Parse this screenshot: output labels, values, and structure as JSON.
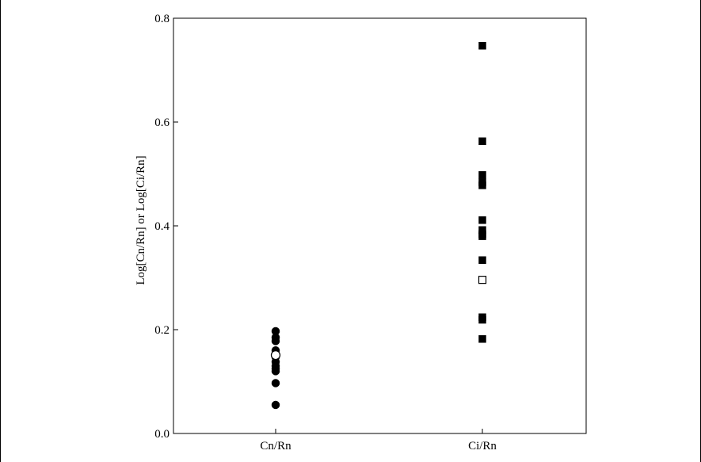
{
  "chart_data": {
    "type": "scatter",
    "title": "",
    "xlabel": "",
    "ylabel": "Log[Cn/Rn] or Log[Ci/Rn]",
    "categories": [
      "Cn/Rn",
      "Ci/Rn"
    ],
    "ylim": [
      0.0,
      0.8
    ],
    "yticks": [
      0.0,
      0.2,
      0.4,
      0.6,
      0.8
    ],
    "ytick_labels": [
      "0.0",
      "0.2",
      "0.4",
      "0.6",
      "0.8"
    ],
    "grid": false,
    "legend": "none",
    "series": [
      {
        "category": "Cn/Rn",
        "marker": "filled-circle",
        "values": [
          0.197,
          0.185,
          0.178,
          0.16,
          0.147,
          0.138,
          0.13,
          0.125,
          0.12,
          0.097,
          0.055
        ]
      },
      {
        "category": "Cn/Rn",
        "marker": "open-circle",
        "values": [
          0.151
        ]
      },
      {
        "category": "Ci/Rn",
        "marker": "filled-square",
        "values": [
          0.747,
          0.563,
          0.498,
          0.484,
          0.478,
          0.411,
          0.392,
          0.384,
          0.38,
          0.334,
          0.224,
          0.219,
          0.182
        ]
      },
      {
        "category": "Ci/Rn",
        "marker": "open-square",
        "values": [
          0.296
        ]
      }
    ]
  },
  "colors": {
    "marker": "#000000",
    "open_fill": "#ffffff",
    "axis": "#000000"
  }
}
